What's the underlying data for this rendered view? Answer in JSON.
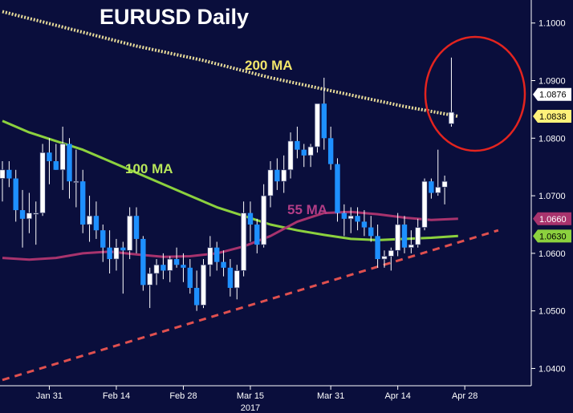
{
  "chart_data": {
    "type": "candlestick",
    "title": "EURUSD Daily",
    "ylim": [
      1.037,
      1.104
    ],
    "yticks": [
      {
        "value": 1.1,
        "label": "1.1000"
      },
      {
        "value": 1.09,
        "label": "1.0900"
      },
      {
        "value": 1.08,
        "label": "1.0800"
      },
      {
        "value": 1.07,
        "label": "1.0700"
      },
      {
        "value": 1.06,
        "label": "1.0600"
      },
      {
        "value": 1.05,
        "label": "1.0500"
      },
      {
        "value": 1.04,
        "label": "1.0400"
      }
    ],
    "xticks": [
      {
        "index": 7,
        "label": "Jan 31"
      },
      {
        "index": 17,
        "label": "Feb 14"
      },
      {
        "index": 27,
        "label": "Feb 28"
      },
      {
        "index": 37,
        "label": "Mar 15"
      },
      {
        "index": 49,
        "label": "Mar 31"
      },
      {
        "index": 59,
        "label": "Apr 14"
      },
      {
        "index": 69,
        "label": "Apr 28"
      }
    ],
    "x_sublabel": {
      "index": 37,
      "label": "2017"
    },
    "ohlc": [
      [
        1.073,
        1.076,
        1.069,
        1.0745
      ],
      [
        1.0745,
        1.076,
        1.0715,
        1.073
      ],
      [
        1.073,
        1.0745,
        1.0655,
        1.0675
      ],
      [
        1.0675,
        1.071,
        1.061,
        1.066
      ],
      [
        1.066,
        1.0705,
        1.0635,
        1.067
      ],
      [
        1.067,
        1.069,
        1.0615,
        1.067
      ],
      [
        1.067,
        1.079,
        1.0665,
        1.0775
      ],
      [
        1.0775,
        1.08,
        1.072,
        1.076
      ],
      [
        1.076,
        1.079,
        1.0745,
        1.0745
      ],
      [
        1.0745,
        1.082,
        1.071,
        1.079
      ],
      [
        1.079,
        1.08,
        1.0695,
        1.0725
      ],
      [
        1.0725,
        1.078,
        1.068,
        1.0725
      ],
      [
        1.0725,
        1.0745,
        1.0635,
        1.065
      ],
      [
        1.065,
        1.07,
        1.062,
        1.0665
      ],
      [
        1.0665,
        1.069,
        1.0625,
        1.064
      ],
      [
        1.064,
        1.065,
        1.0585,
        1.061
      ],
      [
        1.061,
        1.064,
        1.0565,
        1.059
      ],
      [
        1.059,
        1.0625,
        1.057,
        1.061
      ],
      [
        1.061,
        1.062,
        1.053,
        1.0605
      ],
      [
        1.0605,
        1.068,
        1.059,
        1.0665
      ],
      [
        1.0665,
        1.068,
        1.06,
        1.0625
      ],
      [
        1.0625,
        1.063,
        1.0535,
        1.0545
      ],
      [
        1.0545,
        1.0575,
        1.0505,
        1.0565
      ],
      [
        1.0565,
        1.059,
        1.0545,
        1.058
      ],
      [
        1.058,
        1.06,
        1.0555,
        1.057
      ],
      [
        1.057,
        1.0595,
        1.055,
        1.059
      ],
      [
        1.059,
        1.061,
        1.0575,
        1.058
      ],
      [
        1.058,
        1.06,
        1.055,
        1.0575
      ],
      [
        1.0575,
        1.059,
        1.053,
        1.054
      ],
      [
        1.054,
        1.057,
        1.05,
        1.051
      ],
      [
        1.051,
        1.059,
        1.0505,
        1.058
      ],
      [
        1.058,
        1.063,
        1.056,
        1.061
      ],
      [
        1.061,
        1.062,
        1.057,
        1.0585
      ],
      [
        1.0585,
        1.0605,
        1.056,
        1.0575
      ],
      [
        1.0575,
        1.059,
        1.0525,
        1.054
      ],
      [
        1.054,
        1.058,
        1.052,
        1.057
      ],
      [
        1.057,
        1.069,
        1.056,
        1.067
      ],
      [
        1.067,
        1.069,
        1.062,
        1.065
      ],
      [
        1.065,
        1.066,
        1.06,
        1.0615
      ],
      [
        1.0615,
        1.072,
        1.061,
        1.07
      ],
      [
        1.07,
        1.076,
        1.068,
        1.0745
      ],
      [
        1.0745,
        1.0765,
        1.071,
        1.0725
      ],
      [
        1.0725,
        1.077,
        1.0705,
        1.0745
      ],
      [
        1.0745,
        1.081,
        1.073,
        1.0795
      ],
      [
        1.0795,
        1.082,
        1.0765,
        1.078
      ],
      [
        1.078,
        1.079,
        1.075,
        1.077
      ],
      [
        1.077,
        1.079,
        1.075,
        1.0785
      ],
      [
        1.0785,
        1.086,
        1.0775,
        1.086
      ],
      [
        1.086,
        1.0905,
        1.078,
        1.08
      ],
      [
        1.08,
        1.082,
        1.0745,
        1.0755
      ],
      [
        1.0755,
        1.0765,
        1.0655,
        1.067
      ],
      [
        1.067,
        1.0685,
        1.063,
        1.066
      ],
      [
        1.066,
        1.068,
        1.0635,
        1.0665
      ],
      [
        1.0665,
        1.068,
        1.064,
        1.0655
      ],
      [
        1.0655,
        1.0675,
        1.063,
        1.0645
      ],
      [
        1.0645,
        1.0665,
        1.062,
        1.063
      ],
      [
        1.063,
        1.065,
        1.0575,
        1.059
      ],
      [
        1.059,
        1.0605,
        1.0575,
        1.0595
      ],
      [
        1.0595,
        1.061,
        1.057,
        1.0605
      ],
      [
        1.0605,
        1.067,
        1.0595,
        1.065
      ],
      [
        1.065,
        1.0665,
        1.06,
        1.061
      ],
      [
        1.061,
        1.064,
        1.06,
        1.0615
      ],
      [
        1.0615,
        1.066,
        1.061,
        1.0645
      ],
      [
        1.0645,
        1.073,
        1.064,
        1.0725
      ],
      [
        1.0725,
        1.073,
        1.0695,
        1.0705
      ],
      [
        1.0705,
        1.078,
        1.07,
        1.0715
      ],
      [
        1.0715,
        1.0735,
        1.0685,
        1.0725
      ],
      [
        1.0825,
        1.094,
        1.082,
        1.0845
      ]
    ],
    "moving_averages": [
      {
        "name": "200 MA",
        "color": "#e8dc9a",
        "style": "dotted",
        "points": [
          [
            0,
            1.102
          ],
          [
            10,
            1.099
          ],
          [
            20,
            1.096
          ],
          [
            30,
            1.0935
          ],
          [
            40,
            1.0905
          ],
          [
            50,
            1.088
          ],
          [
            60,
            1.0855
          ],
          [
            68,
            1.0838
          ]
        ]
      },
      {
        "name": "100 MA",
        "color": "#8cd13e",
        "style": "solid",
        "points": [
          [
            0,
            1.083
          ],
          [
            4,
            1.081
          ],
          [
            8,
            1.0795
          ],
          [
            12,
            1.078
          ],
          [
            16,
            1.076
          ],
          [
            20,
            1.074
          ],
          [
            24,
            1.072
          ],
          [
            28,
            1.07
          ],
          [
            32,
            1.068
          ],
          [
            36,
            1.0665
          ],
          [
            40,
            1.065
          ],
          [
            44,
            1.064
          ],
          [
            48,
            1.0632
          ],
          [
            52,
            1.0625
          ],
          [
            56,
            1.0623
          ],
          [
            60,
            1.0625
          ],
          [
            64,
            1.0627
          ],
          [
            68,
            1.063
          ]
        ]
      },
      {
        "name": "55 MA",
        "color": "#a8336d",
        "style": "solid",
        "points": [
          [
            0,
            1.0592
          ],
          [
            4,
            1.0589
          ],
          [
            8,
            1.0592
          ],
          [
            12,
            1.06
          ],
          [
            16,
            1.0603
          ],
          [
            20,
            1.0598
          ],
          [
            24,
            1.0594
          ],
          [
            28,
            1.0595
          ],
          [
            32,
            1.06
          ],
          [
            36,
            1.0612
          ],
          [
            40,
            1.063
          ],
          [
            44,
            1.0655
          ],
          [
            48,
            1.067
          ],
          [
            52,
            1.0672
          ],
          [
            56,
            1.0668
          ],
          [
            60,
            1.0662
          ],
          [
            64,
            1.0658
          ],
          [
            68,
            1.066
          ]
        ]
      }
    ],
    "trendline": {
      "color": "#e0504f",
      "style": "dashed",
      "from": [
        0,
        1.038
      ],
      "to": [
        74,
        1.064
      ]
    },
    "price_tags": [
      {
        "value": 1.0876,
        "label": "1.0876",
        "bg": "#ffffff",
        "fg": "#000000"
      },
      {
        "value": 1.0838,
        "label": "1.0838",
        "bg": "#fff27a",
        "fg": "#000000"
      },
      {
        "value": 1.066,
        "label": "1.0660",
        "bg": "#a8336d",
        "fg": "#ffffff"
      },
      {
        "value": 1.063,
        "label": "1.0630",
        "bg": "#8cd13e",
        "fg": "#000000"
      }
    ],
    "annotations": [
      "200 MA",
      "100 MA",
      "55 MA"
    ],
    "colors": {
      "background": "#0a0e3c",
      "up_candle": "#ffffff",
      "down_candle": "#1e90ff",
      "axis_text": "#ffffff",
      "highlight_circle": "#e3241f"
    }
  }
}
